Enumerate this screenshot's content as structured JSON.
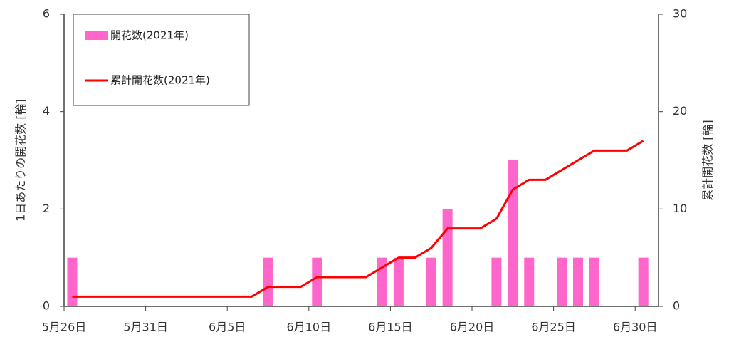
{
  "chart_data": {
    "type": "bar",
    "categories": [
      "5月26日",
      null,
      null,
      null,
      null,
      "5月31日",
      null,
      null,
      null,
      null,
      "6月5日",
      null,
      null,
      null,
      null,
      "6月10日",
      null,
      null,
      null,
      null,
      "6月15日",
      null,
      null,
      null,
      null,
      "6月20日",
      null,
      null,
      null,
      null,
      "6月25日",
      null,
      null,
      null,
      null,
      "6月30日"
    ],
    "series": [
      {
        "name": "開花数(2021年)",
        "type": "bar",
        "color": "#ff66cc",
        "values": [
          1,
          0,
          0,
          0,
          0,
          0,
          0,
          0,
          0,
          0,
          0,
          0,
          1,
          0,
          0,
          1,
          0,
          0,
          0,
          1,
          1,
          0,
          1,
          2,
          0,
          0,
          1,
          3,
          1,
          0,
          1,
          1,
          1,
          0,
          0,
          1
        ]
      },
      {
        "name": "累計開花数(2021年)",
        "type": "line",
        "axis": "y2",
        "color": "#ff0000",
        "values": [
          1,
          1,
          1,
          1,
          1,
          1,
          1,
          1,
          1,
          1,
          1,
          1,
          2,
          2,
          2,
          3,
          3,
          3,
          3,
          4,
          5,
          5,
          6,
          8,
          8,
          8,
          9,
          12,
          13,
          13,
          14,
          15,
          16,
          16,
          16,
          17
        ]
      }
    ],
    "y_label": "1日あたりの開花数 [輪]",
    "y2_label": "累計開花数 [輪]",
    "ylim": [
      0,
      6
    ],
    "yticks": [
      0,
      2,
      4,
      6
    ],
    "y2lim": [
      0,
      30
    ],
    "y2ticks": [
      0,
      10,
      20,
      30
    ],
    "grid": false,
    "legend": "upper left"
  }
}
